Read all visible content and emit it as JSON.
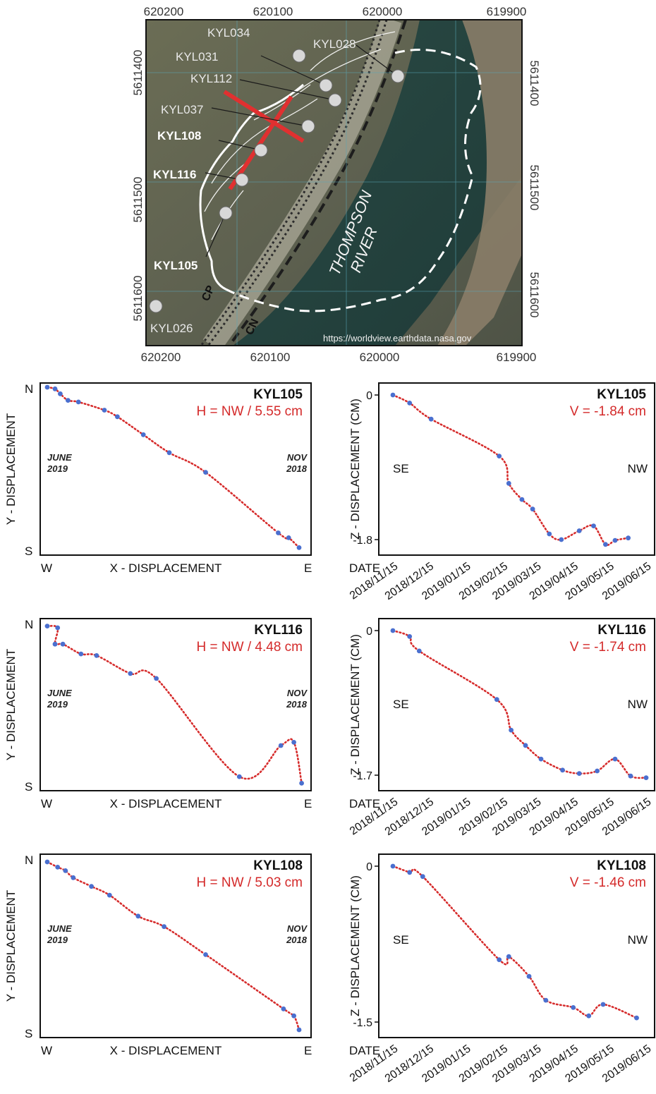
{
  "map": {
    "top_ticks": [
      "620200",
      "620100",
      "620000",
      "619900"
    ],
    "bottom_ticks": [
      "620200",
      "620100",
      "620000",
      "619900"
    ],
    "left_ticks": [
      "5611400",
      "5611500",
      "5611600"
    ],
    "right_ticks": [
      "5611400",
      "5611500",
      "5611600"
    ],
    "stations": [
      {
        "label": "KYL034",
        "bold": false
      },
      {
        "label": "KYL028",
        "bold": false
      },
      {
        "label": "KYL031",
        "bold": false
      },
      {
        "label": "KYL112",
        "bold": false
      },
      {
        "label": "KYL037",
        "bold": false
      },
      {
        "label": "KYL108",
        "bold": true
      },
      {
        "label": "KYL116",
        "bold": true
      },
      {
        "label": "KYL105",
        "bold": true
      },
      {
        "label": "KYL026",
        "bold": false
      }
    ],
    "rail_labels": [
      "CP",
      "CN"
    ],
    "river_label": [
      "THOMPSON",
      "RIVER"
    ],
    "credit": "https://worldview.earthdata.nasa.gov",
    "colors": {
      "marker": "#d8d8d8",
      "cross": "#e03030",
      "boundary": "#ffffff"
    }
  },
  "chart_data": [
    {
      "type": "line",
      "station": "KYL105",
      "summary": "H = NW / 5.55 cm",
      "ylabel": "Y - DISPLACEMENT",
      "xlabel": "X - DISPLACEMENT",
      "y_top": "N",
      "y_bottom": "S",
      "x_left": "W",
      "x_right": "E",
      "left_note": [
        "JUNE",
        "2019"
      ],
      "right_note": [
        "NOV",
        "2018"
      ],
      "x": [
        0.0,
        0.03,
        0.05,
        0.08,
        0.12,
        0.22,
        0.27,
        0.37,
        0.47,
        0.61,
        0.89,
        0.93,
        0.97
      ],
      "y": [
        1.0,
        0.99,
        0.96,
        0.92,
        0.91,
        0.86,
        0.82,
        0.71,
        0.6,
        0.48,
        0.11,
        0.08,
        0.02
      ],
      "markers": [
        0,
        1,
        2,
        3,
        4,
        5,
        6,
        7,
        8,
        9,
        10,
        11,
        12
      ]
    },
    {
      "type": "line",
      "station": "KYL105",
      "summary": "V = -1.84 cm",
      "ylabel": "Z - DISPLACEMENT (CM)",
      "xlabel": "DATE",
      "x_left": "SE",
      "x_right": "NW",
      "yticks": [
        "0",
        "-1.8"
      ],
      "ytick_values": [
        0,
        -1.8
      ],
      "xticks": [
        "2018/11/15",
        "2018/12/15",
        "2019/01/15",
        "2019/02/15",
        "2019/03/15",
        "2019/04/15",
        "2019/05/15",
        "2019/06/15"
      ],
      "x": [
        "2018/11/15",
        "2018/11/29",
        "2018/12/17",
        "2019/02/12",
        "2019/02/20",
        "2019/03/03",
        "2019/03/12",
        "2019/03/26",
        "2019/04/05",
        "2019/04/20",
        "2019/05/02",
        "2019/05/12",
        "2019/05/20",
        "2019/05/31"
      ],
      "y": [
        0.0,
        -0.1,
        -0.3,
        -0.76,
        -1.1,
        -1.3,
        -1.42,
        -1.73,
        -1.8,
        -1.69,
        -1.63,
        -1.86,
        -1.81,
        -1.78
      ],
      "markers": [
        0,
        1,
        2,
        3,
        4,
        5,
        6,
        7,
        8,
        9,
        10,
        11,
        12,
        13
      ]
    },
    {
      "type": "line",
      "station": "KYL116",
      "summary": "H = NW / 4.48 cm",
      "ylabel": "Y - DISPLACEMENT",
      "xlabel": "X - DISPLACEMENT",
      "y_top": "N",
      "y_bottom": "S",
      "x_left": "W",
      "x_right": "E",
      "left_note": [
        "JUNE",
        "2019"
      ],
      "right_note": [
        "NOV",
        "2018"
      ],
      "x": [
        0.0,
        0.04,
        0.03,
        0.06,
        0.13,
        0.19,
        0.32,
        0.42,
        0.74,
        0.9,
        0.95,
        0.98
      ],
      "y": [
        0.98,
        0.97,
        0.87,
        0.87,
        0.81,
        0.8,
        0.69,
        0.66,
        0.06,
        0.25,
        0.27,
        0.02
      ],
      "markers": [
        0,
        1,
        2,
        3,
        4,
        5,
        6,
        7,
        8,
        9,
        10,
        11
      ]
    },
    {
      "type": "line",
      "station": "KYL116",
      "summary": "V = -1.74 cm",
      "ylabel": "Z - DISPLACEMENT (CM)",
      "xlabel": "DATE",
      "x_left": "SE",
      "x_right": "NW",
      "yticks": [
        "0",
        "-1.7"
      ],
      "ytick_values": [
        0,
        -1.7
      ],
      "xticks": [
        "2018/11/15",
        "2018/12/15",
        "2019/01/15",
        "2019/02/15",
        "2019/03/15",
        "2019/04/15",
        "2019/05/15",
        "2019/06/15"
      ],
      "x": [
        "2018/11/15",
        "2018/11/29",
        "2018/12/07",
        "2019/02/10",
        "2019/02/22",
        "2019/03/06",
        "2019/03/19",
        "2019/04/06",
        "2019/04/20",
        "2019/05/05",
        "2019/05/20",
        "2019/06/02",
        "2019/06/15"
      ],
      "y": [
        0.0,
        -0.07,
        -0.24,
        -0.81,
        -1.17,
        -1.35,
        -1.51,
        -1.64,
        -1.68,
        -1.65,
        -1.51,
        -1.71,
        -1.73
      ],
      "markers": [
        0,
        1,
        2,
        3,
        4,
        5,
        6,
        7,
        8,
        9,
        10,
        11,
        12
      ]
    },
    {
      "type": "line",
      "station": "KYL108",
      "summary": "H = NW / 5.03 cm",
      "ylabel": "Y - DISPLACEMENT",
      "xlabel": "X - DISPLACEMENT",
      "y_top": "N",
      "y_bottom": "S",
      "x_left": "W",
      "x_right": "E",
      "left_note": [
        "JUNE",
        "2019"
      ],
      "right_note": [
        "NOV",
        "2018"
      ],
      "x": [
        0.0,
        0.04,
        0.07,
        0.1,
        0.17,
        0.24,
        0.35,
        0.45,
        0.61,
        0.91,
        0.95,
        0.97
      ],
      "y": [
        0.98,
        0.95,
        0.93,
        0.89,
        0.84,
        0.79,
        0.67,
        0.61,
        0.45,
        0.14,
        0.1,
        0.02
      ],
      "markers": [
        0,
        1,
        2,
        3,
        4,
        5,
        6,
        7,
        8,
        9,
        10,
        11
      ]
    },
    {
      "type": "line",
      "station": "KYL108",
      "summary": "V = -1.46 cm",
      "ylabel": "Z - DISPLACEMENT (CM)",
      "xlabel": "DATE",
      "x_left": "SE",
      "x_right": "NW",
      "yticks": [
        "0",
        "-1.5"
      ],
      "ytick_values": [
        0,
        -1.5
      ],
      "xticks": [
        "2018/11/15",
        "2018/12/15",
        "2019/01/15",
        "2019/02/15",
        "2019/03/15",
        "2019/04/15",
        "2019/05/15",
        "2019/06/15"
      ],
      "x": [
        "2018/11/15",
        "2018/11/29",
        "2018/12/10",
        "2019/02/12",
        "2019/02/20",
        "2019/03/09",
        "2019/03/23",
        "2019/04/15",
        "2019/04/28",
        "2019/05/10",
        "2019/06/07"
      ],
      "y": [
        0.0,
        -0.06,
        -0.1,
        -0.9,
        -0.87,
        -1.06,
        -1.29,
        -1.36,
        -1.44,
        -1.33,
        -1.46
      ],
      "markers": [
        0,
        1,
        2,
        3,
        4,
        5,
        6,
        7,
        8,
        9,
        10
      ]
    }
  ]
}
